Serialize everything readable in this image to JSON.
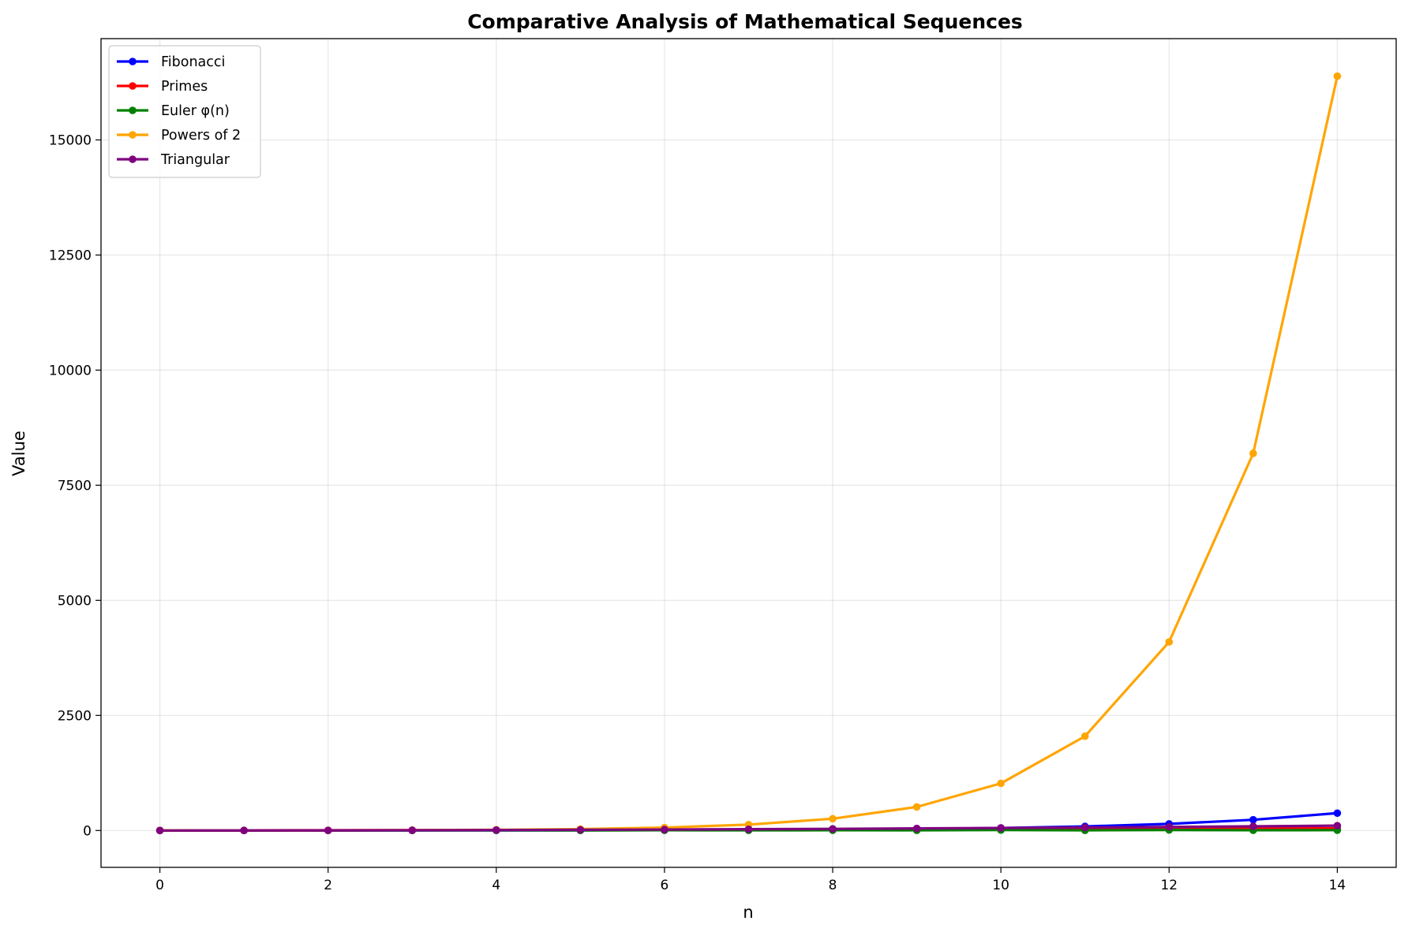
{
  "chart_data": {
    "type": "line",
    "title": "Comparative Analysis of Mathematical Sequences",
    "xlabel": "n",
    "ylabel": "Value",
    "xlim": [
      -0.7,
      14.7
    ],
    "ylim": [
      -800,
      17200
    ],
    "xticks": [
      0,
      2,
      4,
      6,
      8,
      10,
      12,
      14
    ],
    "yticks": [
      0,
      2500,
      5000,
      7500,
      10000,
      12500,
      15000
    ],
    "grid": true,
    "legend": "top-left",
    "x": [
      0,
      1,
      2,
      3,
      4,
      5,
      6,
      7,
      8,
      9,
      10,
      11,
      12,
      13,
      14
    ],
    "series": [
      {
        "name": "Fibonacci",
        "color": "#0000ff",
        "values": [
          0,
          1,
          1,
          2,
          3,
          5,
          8,
          13,
          21,
          34,
          55,
          89,
          144,
          233,
          377
        ]
      },
      {
        "name": "Primes",
        "color": "#ff0000",
        "values": [
          2,
          3,
          5,
          7,
          11,
          13,
          17,
          19,
          23,
          29,
          31,
          37,
          41,
          43,
          47
        ]
      },
      {
        "name": "Euler φ(n)",
        "color": "#008000",
        "values": [
          1,
          1,
          2,
          2,
          4,
          2,
          6,
          4,
          6,
          4,
          10,
          4,
          12,
          6,
          8
        ]
      },
      {
        "name": "Powers of 2",
        "color": "#ffa500",
        "values": [
          1,
          2,
          4,
          8,
          16,
          32,
          64,
          128,
          256,
          512,
          1024,
          2048,
          4096,
          8192,
          16384
        ]
      },
      {
        "name": "Triangular",
        "color": "#800080",
        "values": [
          0,
          1,
          3,
          6,
          10,
          15,
          21,
          28,
          36,
          45,
          55,
          66,
          78,
          91,
          105
        ]
      }
    ]
  }
}
